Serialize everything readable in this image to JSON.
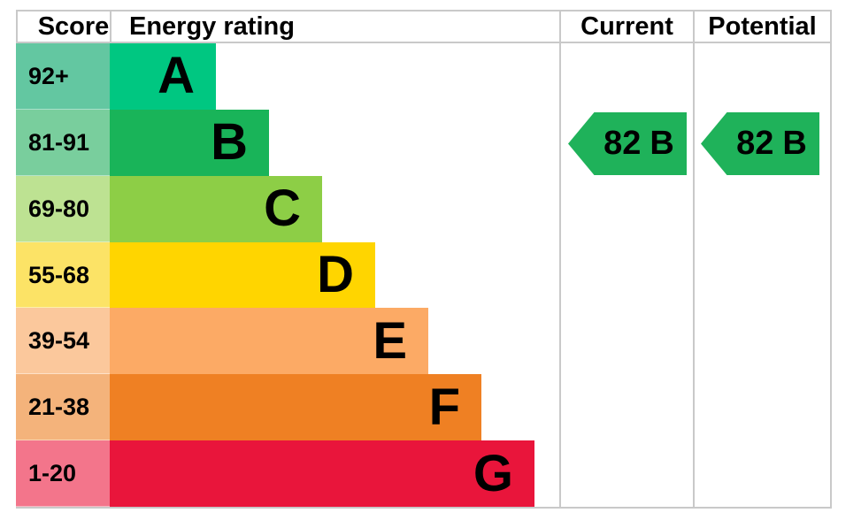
{
  "header": {
    "score": "Score",
    "energy_rating": "Energy rating",
    "current": "Current",
    "potential": "Potential"
  },
  "bands": [
    {
      "letter": "A",
      "range": "92+",
      "color": "#00c781",
      "tint": "#63c7a1"
    },
    {
      "letter": "B",
      "range": "81-91",
      "color": "#19b459",
      "tint": "#79ce9d"
    },
    {
      "letter": "C",
      "range": "69-80",
      "color": "#8dce46",
      "tint": "#bde292"
    },
    {
      "letter": "D",
      "range": "55-68",
      "color": "#ffd500",
      "tint": "#fce366"
    },
    {
      "letter": "E",
      "range": "39-54",
      "color": "#fcaa65",
      "tint": "#fbc89c"
    },
    {
      "letter": "F",
      "range": "21-38",
      "color": "#ef8023",
      "tint": "#f4b37b"
    },
    {
      "letter": "G",
      "range": "1-20",
      "color": "#e9153b",
      "tint": "#f3758b"
    }
  ],
  "ratings": {
    "current": {
      "score": "82",
      "band": "B",
      "color": "#1fb25a"
    },
    "potential": {
      "score": "82",
      "band": "B",
      "color": "#1fb25a"
    }
  },
  "border_color": "#c9c9c9",
  "chart_data": {
    "type": "bar",
    "orientation": "horizontal",
    "columns": [
      "Score",
      "Energy rating",
      "Current",
      "Potential"
    ],
    "categories": [
      "A",
      "B",
      "C",
      "D",
      "E",
      "F",
      "G"
    ],
    "score_ranges": [
      "92+",
      "81-91",
      "69-80",
      "55-68",
      "39-54",
      "21-38",
      "1-20"
    ],
    "band_colors": [
      "#00c781",
      "#19b459",
      "#8dce46",
      "#ffd500",
      "#fcaa65",
      "#ef8023",
      "#e9153b"
    ],
    "relative_bar_widths": [
      1,
      1.5,
      2,
      2.5,
      3,
      3.5,
      4
    ],
    "current": {
      "value": 82,
      "band": "B"
    },
    "potential": {
      "value": 82,
      "band": "B"
    },
    "legend_position": "none",
    "grid": false
  }
}
